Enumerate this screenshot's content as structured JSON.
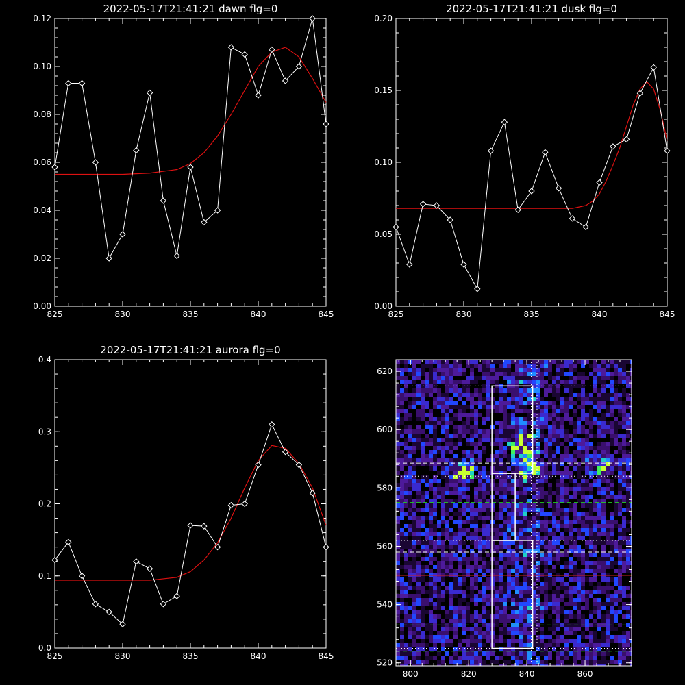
{
  "colors": {
    "background": "#000000",
    "axes": "#ffffff",
    "data_line": "#ffffff",
    "fit_line": "#dd1111",
    "guide_green": "#22cc22",
    "guide_white": "#ffffff",
    "guide_red": "#cc2222"
  },
  "chart_data": [
    {
      "type": "line",
      "title": "2022-05-17T21:41:21 dawn flg=0",
      "xlim": [
        825,
        845
      ],
      "ylim": [
        0.0,
        0.12
      ],
      "xticks": [
        "825",
        "830",
        "835",
        "840",
        "845"
      ],
      "yticks": [
        "0.00",
        "0.02",
        "0.04",
        "0.06",
        "0.08",
        "0.10",
        "0.12"
      ],
      "series": [
        {
          "marker": "diamond",
          "x": [
            825,
            826,
            827,
            828,
            829,
            830,
            831,
            832,
            833,
            834,
            835,
            836,
            837,
            838,
            839,
            840,
            841,
            842,
            843,
            844,
            845
          ],
          "y": [
            0.058,
            0.093,
            0.093,
            0.06,
            0.02,
            0.03,
            0.065,
            0.089,
            0.044,
            0.021,
            0.058,
            0.035,
            0.04,
            0.108,
            0.105,
            0.088,
            0.107,
            0.094,
            0.1,
            0.12,
            0.076
          ]
        },
        {
          "marker": "none",
          "x": [
            825,
            830,
            832,
            834,
            835,
            836,
            837,
            838,
            839,
            840,
            841,
            842,
            843,
            844,
            845
          ],
          "y": [
            0.055,
            0.055,
            0.0555,
            0.057,
            0.0595,
            0.064,
            0.071,
            0.08,
            0.09,
            0.1,
            0.106,
            0.108,
            0.104,
            0.095,
            0.085
          ]
        }
      ]
    },
    {
      "type": "line",
      "title": "2022-05-17T21:41:21 dusk flg=0",
      "xlim": [
        825,
        845
      ],
      "ylim": [
        0.0,
        0.2
      ],
      "xticks": [
        "825",
        "830",
        "835",
        "840",
        "845"
      ],
      "yticks": [
        "0.00",
        "0.05",
        "0.10",
        "0.15",
        "0.20"
      ],
      "series": [
        {
          "marker": "diamond",
          "x": [
            825,
            826,
            827,
            828,
            829,
            830,
            831,
            832,
            833,
            834,
            835,
            836,
            837,
            838,
            839,
            840,
            841,
            842,
            843,
            844,
            845
          ],
          "y": [
            0.055,
            0.029,
            0.071,
            0.07,
            0.06,
            0.029,
            0.012,
            0.108,
            0.128,
            0.067,
            0.08,
            0.107,
            0.082,
            0.061,
            0.055,
            0.086,
            0.111,
            0.116,
            0.148,
            0.166,
            0.108
          ]
        },
        {
          "marker": "none",
          "x": [
            825,
            838,
            839,
            839.5,
            840,
            840.5,
            841,
            841.5,
            842,
            842.5,
            843,
            843.5,
            844,
            844.5,
            845
          ],
          "y": [
            0.068,
            0.068,
            0.07,
            0.073,
            0.078,
            0.087,
            0.098,
            0.11,
            0.125,
            0.14,
            0.151,
            0.156,
            0.151,
            0.136,
            0.115
          ]
        }
      ]
    },
    {
      "type": "line",
      "title": "2022-05-17T21:41:21 aurora flg=0",
      "xlim": [
        825,
        845
      ],
      "ylim": [
        0.0,
        0.4
      ],
      "xticks": [
        "825",
        "830",
        "835",
        "840",
        "845"
      ],
      "yticks": [
        "0.0",
        "0.1",
        "0.2",
        "0.3",
        "0.4"
      ],
      "series": [
        {
          "marker": "diamond",
          "x": [
            825,
            826,
            827,
            828,
            829,
            830,
            831,
            832,
            833,
            834,
            835,
            836,
            837,
            838,
            839,
            840,
            841,
            842,
            843,
            844,
            845
          ],
          "y": [
            0.122,
            0.147,
            0.1,
            0.061,
            0.05,
            0.033,
            0.12,
            0.11,
            0.061,
            0.072,
            0.17,
            0.169,
            0.14,
            0.198,
            0.2,
            0.254,
            0.31,
            0.272,
            0.254,
            0.215,
            0.14
          ]
        },
        {
          "marker": "none",
          "x": [
            825,
            832,
            834,
            835,
            836,
            837,
            838,
            839,
            840,
            841,
            842,
            843,
            844,
            845
          ],
          "y": [
            0.094,
            0.094,
            0.098,
            0.106,
            0.122,
            0.146,
            0.18,
            0.222,
            0.26,
            0.281,
            0.277,
            0.256,
            0.222,
            0.17
          ]
        }
      ]
    },
    {
      "type": "heatmap",
      "title": "",
      "xlim": [
        795,
        876
      ],
      "ylim": [
        519,
        624
      ],
      "xticks": [
        "800",
        "820",
        "840",
        "860"
      ],
      "yticks": [
        "520",
        "540",
        "560",
        "580",
        "600",
        "620"
      ],
      "boxes": [
        {
          "x": [
            828,
            842
          ],
          "y": [
            585,
            615
          ]
        },
        {
          "x": [
            828,
            836
          ],
          "y": [
            562,
            585
          ]
        },
        {
          "x": [
            828,
            842
          ],
          "y": [
            525,
            562
          ]
        }
      ],
      "hotspots": [
        {
          "x": 841,
          "y": 587,
          "intensity": 1.0
        },
        {
          "x": 818,
          "y": 585,
          "intensity": 0.8
        },
        {
          "x": 866,
          "y": 588,
          "intensity": 0.7
        },
        {
          "x": 838,
          "y": 595,
          "intensity": 0.6
        }
      ],
      "guides": [
        {
          "orient": "h",
          "value": 615,
          "style": "dotted",
          "color": "guide_white"
        },
        {
          "orient": "h",
          "value": 588.5,
          "style": "dashed",
          "color": "guide_white"
        },
        {
          "orient": "h",
          "value": 584,
          "style": "dotted",
          "color": "guide_white"
        },
        {
          "orient": "h",
          "value": 575,
          "style": "dashed",
          "color": "guide_green"
        },
        {
          "orient": "h",
          "value": 562,
          "style": "dotted",
          "color": "guide_white"
        },
        {
          "orient": "h",
          "value": 558,
          "style": "dashed",
          "color": "guide_white"
        },
        {
          "orient": "h",
          "value": 550,
          "style": "solid",
          "color": "guide_red"
        },
        {
          "orient": "h",
          "value": 533,
          "style": "dashed",
          "color": "guide_green"
        },
        {
          "orient": "h",
          "value": 525,
          "style": "dotted",
          "color": "guide_white"
        },
        {
          "orient": "h",
          "value": 524,
          "style": "dashed",
          "color": "guide_green"
        },
        {
          "orient": "v",
          "value": 841.5,
          "style": "dotted",
          "color": "guide_white"
        },
        {
          "orient": "v",
          "value": 843.5,
          "style": "dotted",
          "color": "guide_white"
        }
      ]
    }
  ]
}
